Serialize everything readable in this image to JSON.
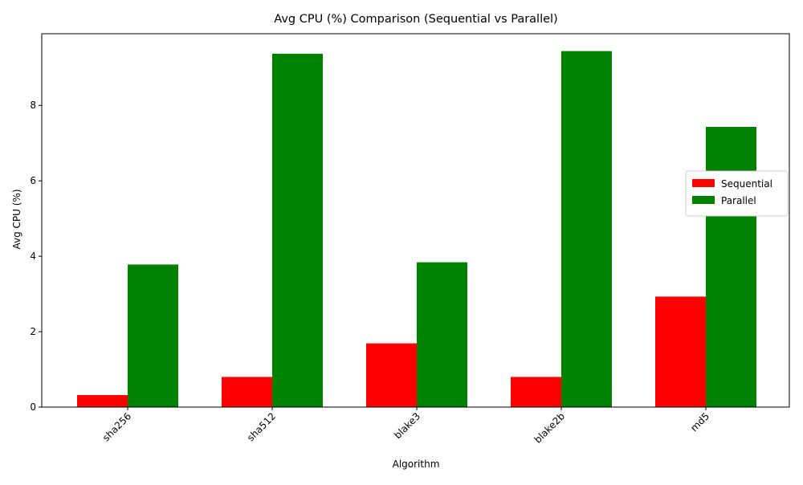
{
  "chart_data": {
    "type": "bar",
    "title": "Avg CPU (%) Comparison (Sequential vs Parallel)",
    "xlabel": "Algorithm",
    "ylabel": "Avg CPU (%)",
    "categories": [
      "sha256",
      "sha512",
      "blake3",
      "blake2b",
      "md5"
    ],
    "series": [
      {
        "name": "Sequential",
        "color": "#ff0000",
        "values": [
          0.32,
          0.8,
          1.69,
          0.8,
          2.93
        ]
      },
      {
        "name": "Parallel",
        "color": "#008000",
        "values": [
          3.78,
          9.37,
          3.84,
          9.44,
          7.43
        ]
      }
    ],
    "ylim": [
      0,
      9.9
    ],
    "yticks": [
      0,
      2,
      4,
      6,
      8
    ],
    "xtick_rotation": 45,
    "grid": false,
    "legend_position": "top-right"
  }
}
